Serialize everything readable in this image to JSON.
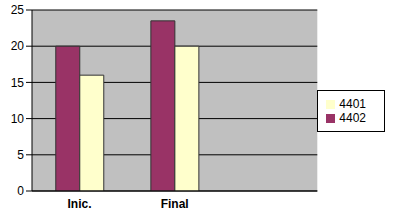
{
  "chart_data": {
    "type": "bar",
    "categories": [
      "Inic.",
      "Final",
      null
    ],
    "series": [
      {
        "name": "4402",
        "color": "#993366",
        "values": [
          20,
          23.5,
          null
        ]
      },
      {
        "name": "4401",
        "color": "#ffffcc",
        "values": [
          16,
          20,
          null
        ]
      }
    ],
    "ylim": [
      0,
      25
    ],
    "yticks": [
      0,
      5,
      10,
      15,
      20,
      25
    ],
    "grid": true,
    "legend": "right"
  }
}
